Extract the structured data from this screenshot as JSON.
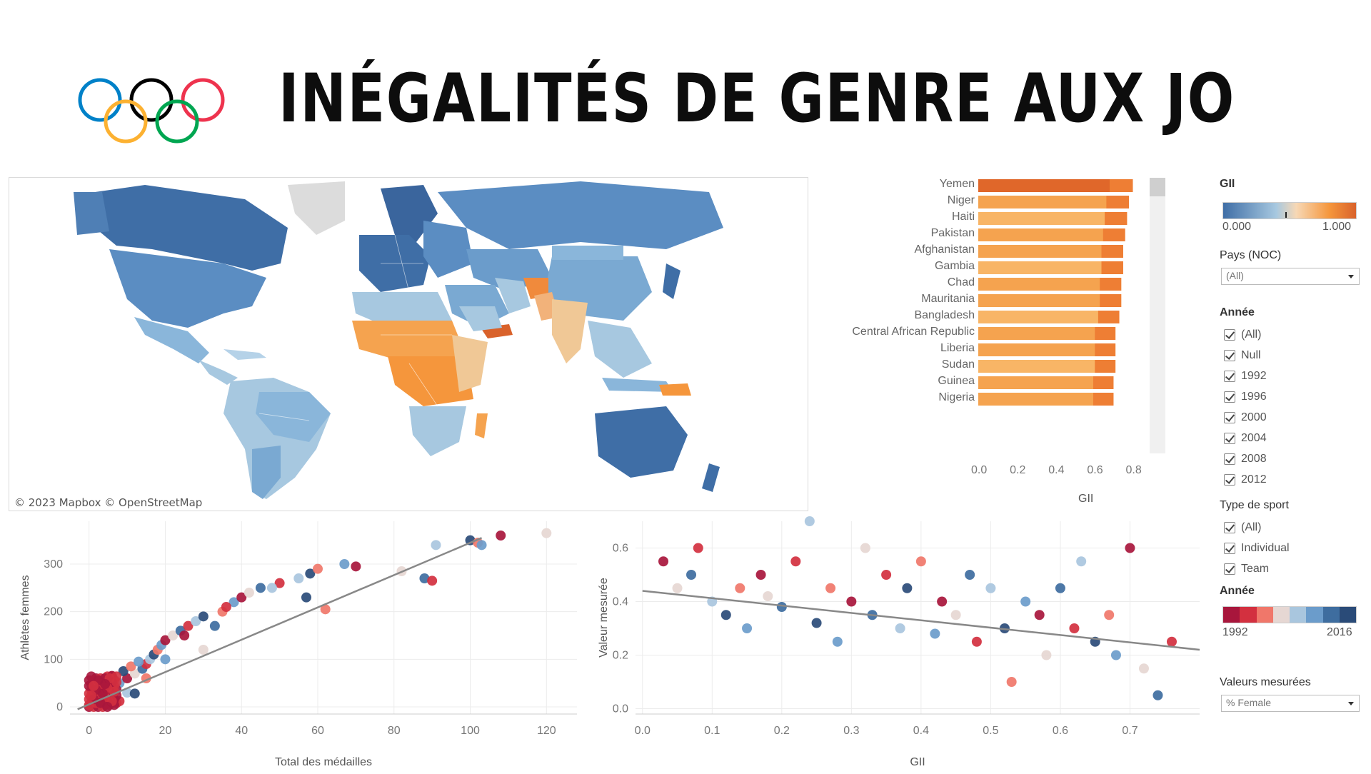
{
  "header": {
    "title": "INÉGALITÉS DE GENRE AUX JO",
    "logo_icon": "olympic-rings-icon",
    "ring_colors": [
      "#0081c8",
      "#fcb131",
      "#000000",
      "#00a651",
      "#ee334e"
    ]
  },
  "map": {
    "credit": "© 2023 Mapbox  © OpenStreetMap",
    "palette": {
      "low": "#3f6ea6",
      "mid": "#a7c8e0",
      "null": "#dcdcdc",
      "high": "#f5963c",
      "max": "#d9622b"
    }
  },
  "gii_bar_chart": {
    "axis_title": "GII",
    "ticks": [
      "0.0",
      "0.2",
      "0.4",
      "0.6",
      "0.8"
    ]
  },
  "scatter_medals": {
    "ylabel": "Athlètes femmes",
    "xlabel": "Total des médailles",
    "xticks": [
      "0",
      "20",
      "40",
      "60",
      "80",
      "100",
      "120"
    ],
    "yticks": [
      "0",
      "100",
      "200",
      "300"
    ]
  },
  "scatter_gii": {
    "ylabel": "Valeur mesurée",
    "xlabel": "GII",
    "xticks": [
      "0.0",
      "0.1",
      "0.2",
      "0.3",
      "0.4",
      "0.5",
      "0.6",
      "0.7"
    ],
    "yticks": [
      "0.0",
      "0.2",
      "0.4",
      "0.6"
    ]
  },
  "filters": {
    "gii_legend": {
      "title": "GII",
      "min": "0.000",
      "max": "1.000"
    },
    "country": {
      "title": "Pays (NOC)",
      "value": "(All)"
    },
    "year": {
      "title": "Année",
      "options": [
        "(All)",
        "Null",
        "1992",
        "1996",
        "2000",
        "2004",
        "2008",
        "2012"
      ]
    },
    "sport_type": {
      "title": "Type de sport",
      "options": [
        "(All)",
        "Individual",
        "Team"
      ]
    },
    "year_color_legend": {
      "title": "Année",
      "min": "1992",
      "max": "2016",
      "colors": [
        "#a8163c",
        "#d3303f",
        "#f0776a",
        "#e6d7d3",
        "#a9c6de",
        "#6b9ccb",
        "#3e6d9f",
        "#2a4b78"
      ]
    },
    "measure": {
      "title": "Valeurs mesurées",
      "value": "% Female"
    }
  },
  "chart_data": [
    {
      "type": "bar",
      "title": "",
      "xlabel": "GII",
      "ylabel": "",
      "xlim": [
        0,
        0.85
      ],
      "categories": [
        "Yemen",
        "Niger",
        "Haiti",
        "Pakistan",
        "Afghanistan",
        "Gambia",
        "Chad",
        "Mauritania",
        "Bangladesh",
        "Central African Republic",
        "Liberia",
        "Sudan",
        "Guinea",
        "Nigeria"
      ],
      "values": [
        0.8,
        0.78,
        0.77,
        0.76,
        0.75,
        0.75,
        0.74,
        0.74,
        0.73,
        0.71,
        0.71,
        0.71,
        0.7,
        0.7
      ]
    },
    {
      "type": "scatter",
      "title": "",
      "xlabel": "Total des médailles",
      "ylabel": "Athlètes femmes",
      "xlim": [
        -5,
        128
      ],
      "ylim": [
        -15,
        390
      ],
      "x": [
        1,
        2,
        3,
        4,
        5,
        2,
        6,
        8,
        10,
        12,
        14,
        15,
        16,
        17,
        18,
        19,
        20,
        22,
        24,
        26,
        28,
        30,
        35,
        38,
        40,
        42,
        45,
        50,
        55,
        58,
        60,
        67,
        70,
        82,
        88,
        90,
        91,
        100,
        102,
        103,
        108,
        120,
        3,
        5,
        7,
        9,
        11,
        13,
        6,
        4,
        2,
        8,
        10,
        12,
        15,
        20,
        25,
        30,
        33,
        36,
        48,
        57,
        62
      ],
      "y": [
        10,
        20,
        5,
        30,
        15,
        40,
        35,
        50,
        60,
        70,
        80,
        90,
        100,
        110,
        120,
        130,
        140,
        150,
        160,
        170,
        180,
        190,
        200,
        220,
        230,
        240,
        250,
        260,
        270,
        280,
        290,
        300,
        295,
        285,
        270,
        265,
        340,
        350,
        345,
        340,
        360,
        365,
        25,
        45,
        55,
        75,
        85,
        95,
        65,
        35,
        8,
        12,
        30,
        28,
        60,
        100,
        150,
        120,
        170,
        210,
        250,
        230,
        205
      ]
    },
    {
      "type": "scatter",
      "title": "",
      "xlabel": "GII",
      "ylabel": "Valeur mesurée",
      "xlim": [
        -0.01,
        0.8
      ],
      "ylim": [
        -0.02,
        0.7
      ],
      "x": [
        0.03,
        0.05,
        0.07,
        0.08,
        0.1,
        0.12,
        0.14,
        0.15,
        0.17,
        0.18,
        0.2,
        0.22,
        0.24,
        0.25,
        0.27,
        0.28,
        0.3,
        0.32,
        0.33,
        0.35,
        0.37,
        0.38,
        0.4,
        0.42,
        0.43,
        0.45,
        0.47,
        0.48,
        0.5,
        0.52,
        0.53,
        0.55,
        0.57,
        0.58,
        0.6,
        0.62,
        0.63,
        0.65,
        0.67,
        0.68,
        0.7,
        0.72,
        0.74,
        0.76
      ],
      "y": [
        0.55,
        0.45,
        0.5,
        0.6,
        0.4,
        0.35,
        0.45,
        0.3,
        0.5,
        0.42,
        0.38,
        0.55,
        0.7,
        0.32,
        0.45,
        0.25,
        0.4,
        0.6,
        0.35,
        0.5,
        0.3,
        0.45,
        0.55,
        0.28,
        0.4,
        0.35,
        0.5,
        0.25,
        0.45,
        0.3,
        0.1,
        0.4,
        0.35,
        0.2,
        0.45,
        0.3,
        0.55,
        0.25,
        0.35,
        0.2,
        0.6,
        0.15,
        0.05,
        0.25
      ],
      "trend_line": [
        [
          0.0,
          0.44
        ],
        [
          0.8,
          0.22
        ]
      ]
    }
  ]
}
